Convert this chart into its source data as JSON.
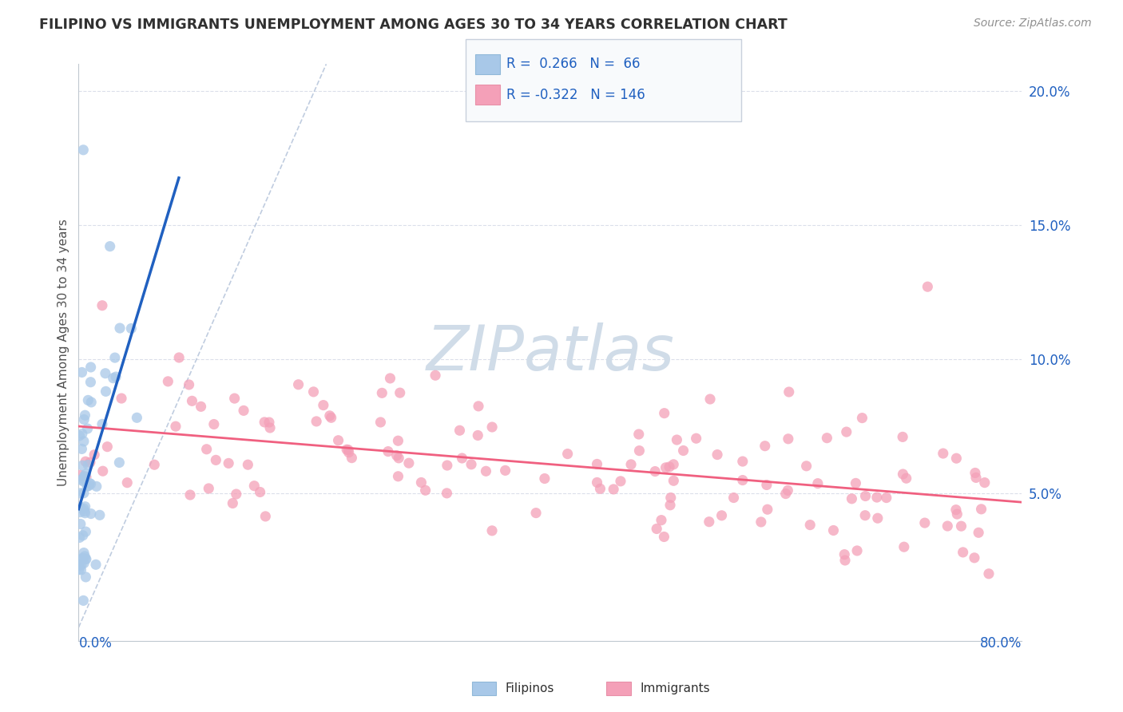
{
  "title": "FILIPINO VS IMMIGRANTS UNEMPLOYMENT AMONG AGES 30 TO 34 YEARS CORRELATION CHART",
  "source": "Source: ZipAtlas.com",
  "ylabel": "Unemployment Among Ages 30 to 34 years",
  "xlim": [
    0.0,
    0.8
  ],
  "ylim": [
    -0.005,
    0.21
  ],
  "r_filipino": 0.266,
  "n_filipino": 66,
  "r_immigrant": -0.322,
  "n_immigrant": 146,
  "filipino_color": "#a8c8e8",
  "immigrant_color": "#f4a0b8",
  "filipino_line_color": "#2060c0",
  "immigrant_line_color": "#f06080",
  "diagonal_color": "#b0c0d8",
  "watermark_color": "#d0dce8",
  "background_color": "#ffffff",
  "title_color": "#303030",
  "source_color": "#909090",
  "stat_color": "#2060c0",
  "grid_color": "#d8dce8"
}
